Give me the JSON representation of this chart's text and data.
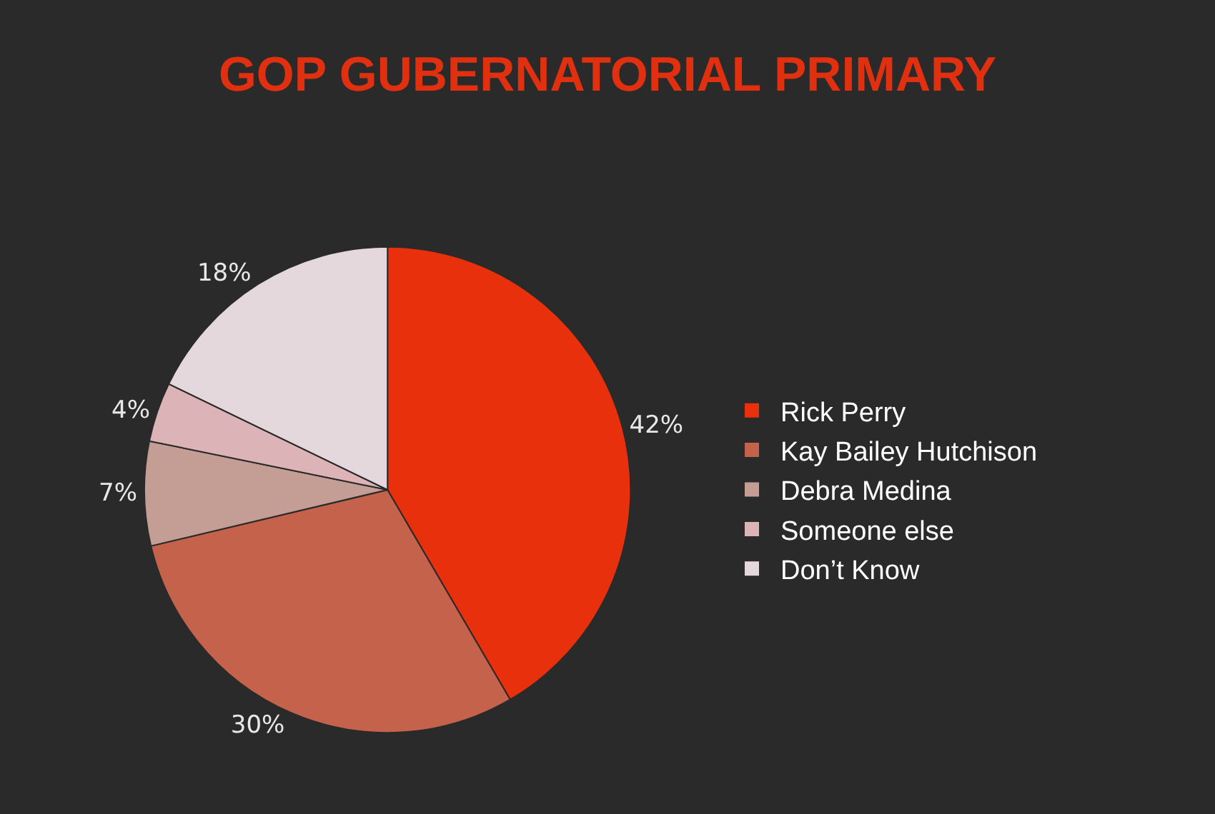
{
  "chart_data": {
    "type": "pie",
    "title": "GOP GUBERNATORIAL PRIMARY",
    "categories": [
      "Rick Perry",
      "Kay Bailey Hutchison",
      "Debra Medina",
      "Someone else",
      "Don’t Know"
    ],
    "values": [
      42,
      30,
      7,
      4,
      18
    ],
    "colors": [
      "#e8300c",
      "#c4624c",
      "#c49e94",
      "#dcb4b8",
      "#e4d8dc"
    ],
    "value_labels": [
      "42%",
      "30%",
      "7%",
      "4%",
      "18%"
    ],
    "legend": "right"
  }
}
